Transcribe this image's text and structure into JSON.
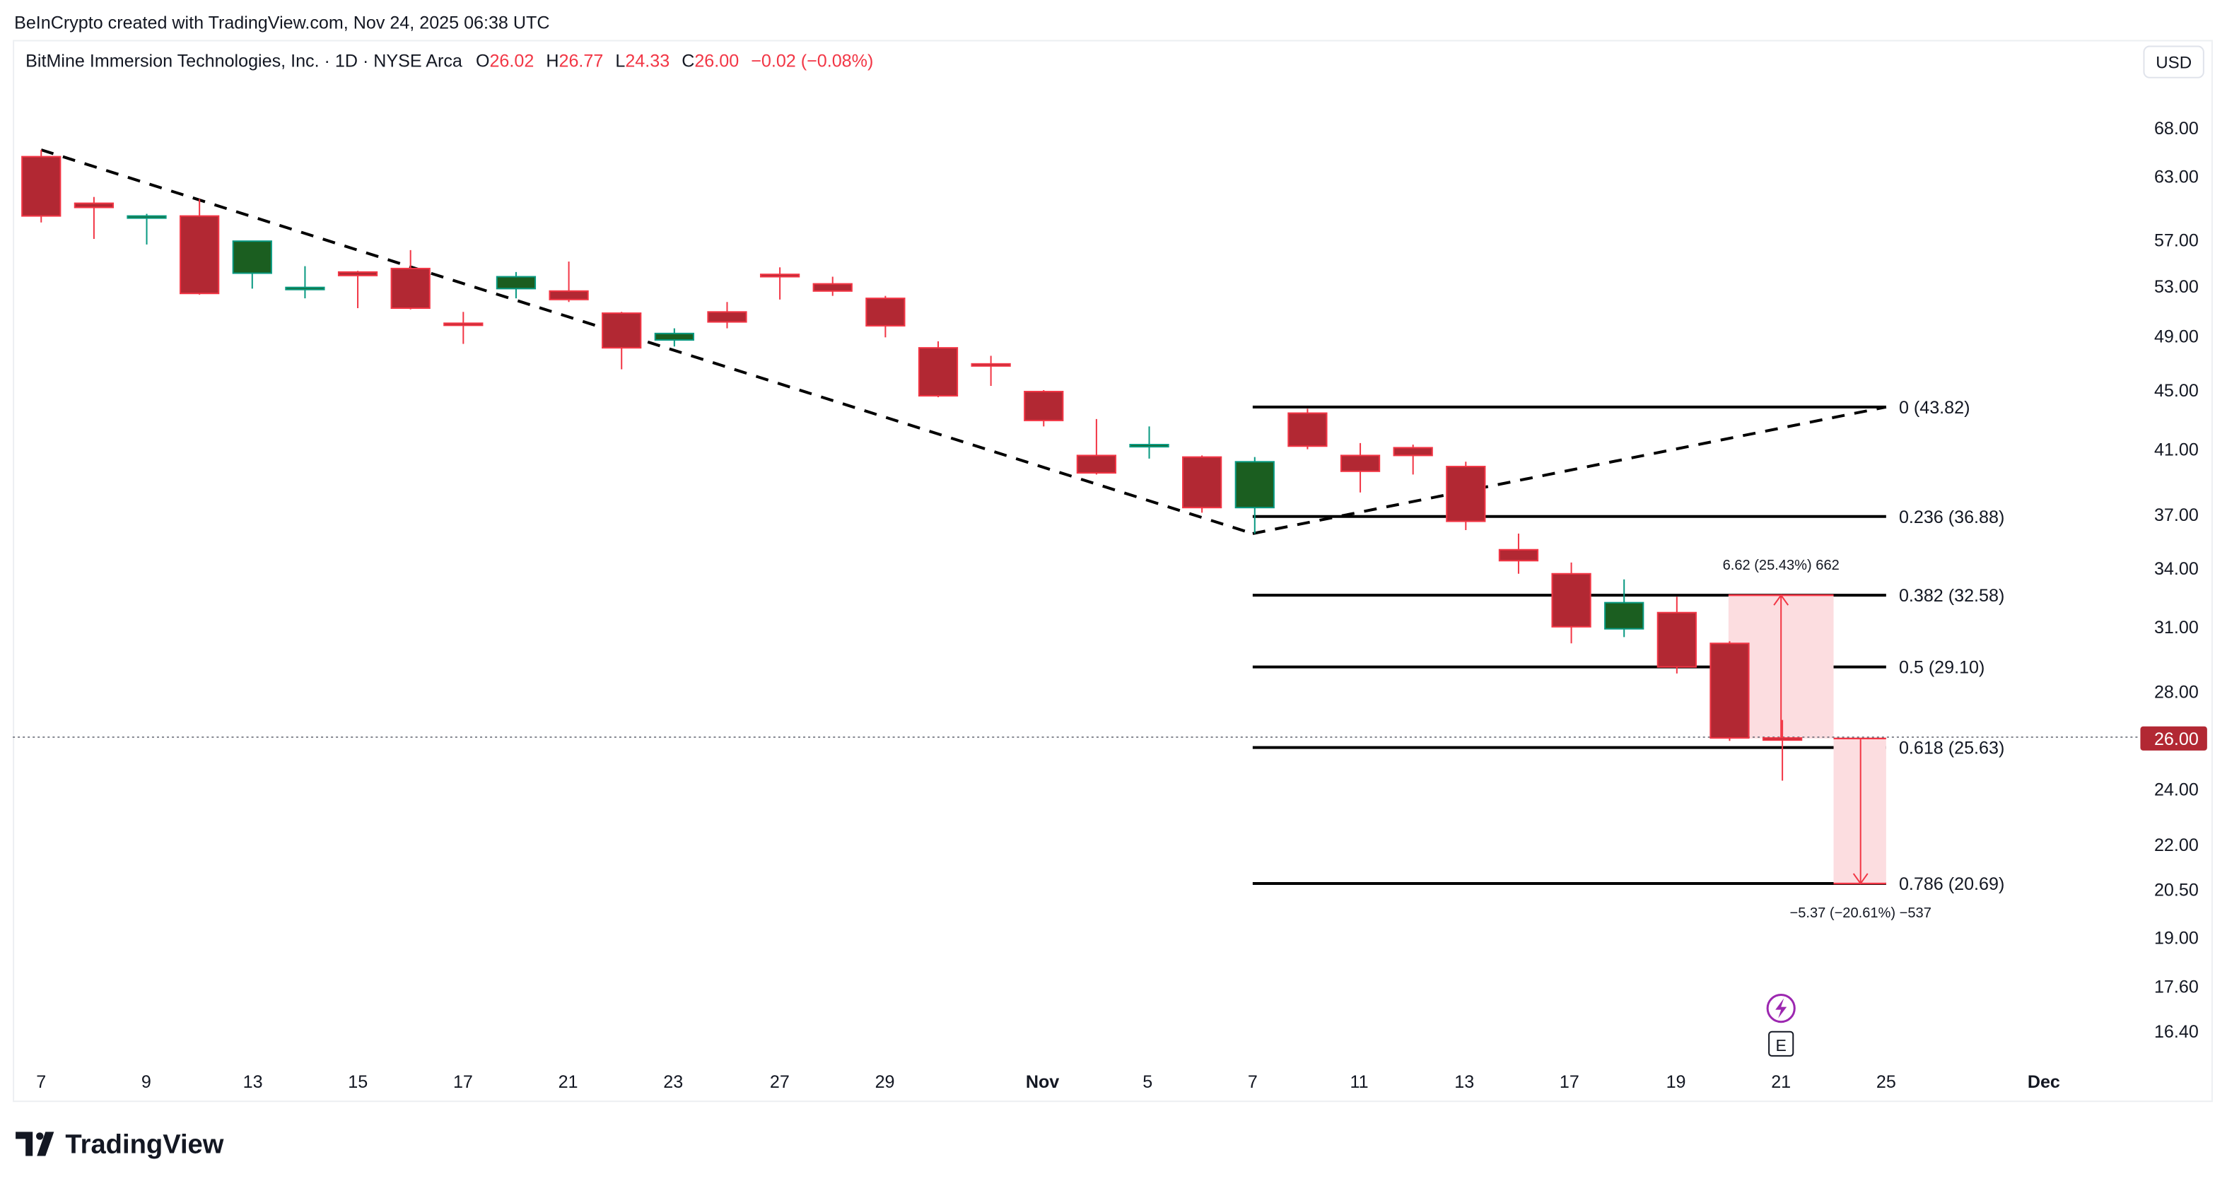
{
  "header": {
    "credit": "BeInCrypto created with TradingView.com, Nov 24, 2025 06:38 UTC"
  },
  "legend": {
    "symbol": "BitMine Immersion Technologies, Inc. · 1D · NYSE Arca",
    "o_label": "O",
    "o": "26.02",
    "h_label": "H",
    "h": "26.77",
    "l_label": "L",
    "l": "24.33",
    "c_label": "C",
    "c": "26.00",
    "change": "−0.02 (−0.08%)"
  },
  "currency_button": "USD",
  "footer": {
    "logo_text": "TradingView"
  },
  "colors": {
    "up_body": "#1b5e20",
    "up_border": "#089981",
    "down_body": "#b22833",
    "down_border": "#f23645",
    "accent_red": "#f23645",
    "measure_fill": "#fcdde0"
  },
  "chart_data": {
    "type": "candlestick",
    "y_scale": "log",
    "ylim": [
      15.9,
      74
    ],
    "y_ticks": [
      "68.00",
      "63.00",
      "57.00",
      "53.00",
      "49.00",
      "45.00",
      "41.00",
      "37.00",
      "34.00",
      "31.00",
      "28.00",
      "24.00",
      "22.00",
      "20.50",
      "19.00",
      "17.60",
      "16.40"
    ],
    "y_tick_values": [
      68,
      63,
      57,
      53,
      49,
      45,
      41,
      37,
      34,
      31,
      28,
      24,
      22,
      20.5,
      19,
      17.6,
      16.4
    ],
    "last_price": {
      "value": 26.0,
      "label": "26.00"
    },
    "x_ticks": [
      "7",
      "9",
      "13",
      "15",
      "17",
      "21",
      "23",
      "27",
      "29",
      "Nov",
      "5",
      "7",
      "11",
      "13",
      "17",
      "19",
      "21",
      "25",
      "Dec"
    ],
    "candles": [
      {
        "date": "2025-10-07",
        "o": 65.0,
        "h": 65.7,
        "l": 58.6,
        "c": 59.2
      },
      {
        "date": "2025-10-08",
        "o": 60.4,
        "h": 61.0,
        "l": 57.1,
        "c": 60.0
      },
      {
        "date": "2025-10-09",
        "o": 59.1,
        "h": 59.4,
        "l": 56.6,
        "c": 59.2
      },
      {
        "date": "2025-10-10",
        "o": 59.2,
        "h": 60.8,
        "l": 52.3,
        "c": 52.4
      },
      {
        "date": "2025-10-13",
        "o": 54.1,
        "h": 56.9,
        "l": 52.8,
        "c": 56.9
      },
      {
        "date": "2025-10-14",
        "o": 52.8,
        "h": 54.7,
        "l": 52.0,
        "c": 52.9
      },
      {
        "date": "2025-10-15",
        "o": 54.2,
        "h": 54.3,
        "l": 51.2,
        "c": 53.9
      },
      {
        "date": "2025-10-16",
        "o": 54.5,
        "h": 56.1,
        "l": 51.1,
        "c": 51.2
      },
      {
        "date": "2025-10-17",
        "o": 50.0,
        "h": 50.9,
        "l": 48.4,
        "c": 49.9
      },
      {
        "date": "2025-10-20",
        "o": 52.8,
        "h": 54.2,
        "l": 52.0,
        "c": 53.8
      },
      {
        "date": "2025-10-21",
        "o": 52.6,
        "h": 55.1,
        "l": 51.7,
        "c": 51.9
      },
      {
        "date": "2025-10-22",
        "o": 50.8,
        "h": 50.9,
        "l": 46.5,
        "c": 48.1
      },
      {
        "date": "2025-10-23",
        "o": 48.7,
        "h": 49.6,
        "l": 48.2,
        "c": 49.2
      },
      {
        "date": "2025-10-24",
        "o": 50.9,
        "h": 51.7,
        "l": 49.6,
        "c": 50.1
      },
      {
        "date": "2025-10-27",
        "o": 54.0,
        "h": 54.6,
        "l": 51.9,
        "c": 53.8
      },
      {
        "date": "2025-10-28",
        "o": 53.2,
        "h": 53.8,
        "l": 52.2,
        "c": 52.6
      },
      {
        "date": "2025-10-29",
        "o": 52.0,
        "h": 52.2,
        "l": 48.9,
        "c": 49.8
      },
      {
        "date": "2025-10-30",
        "o": 48.1,
        "h": 48.6,
        "l": 44.5,
        "c": 44.6
      },
      {
        "date": "2025-10-31",
        "o": 46.9,
        "h": 47.5,
        "l": 45.3,
        "c": 46.8
      },
      {
        "date": "2025-11-03",
        "o": 44.9,
        "h": 45.0,
        "l": 42.5,
        "c": 42.9
      },
      {
        "date": "2025-11-04",
        "o": 40.6,
        "h": 43.0,
        "l": 39.4,
        "c": 39.5
      },
      {
        "date": "2025-11-05",
        "o": 41.2,
        "h": 42.5,
        "l": 40.4,
        "c": 41.3
      },
      {
        "date": "2025-11-06",
        "o": 40.5,
        "h": 40.6,
        "l": 37.1,
        "c": 37.4
      },
      {
        "date": "2025-11-07",
        "o": 37.4,
        "h": 40.5,
        "l": 35.9,
        "c": 40.2
      },
      {
        "date": "2025-11-10",
        "o": 43.4,
        "h": 43.7,
        "l": 41.0,
        "c": 41.2
      },
      {
        "date": "2025-11-11",
        "o": 40.6,
        "h": 41.4,
        "l": 38.3,
        "c": 39.6
      },
      {
        "date": "2025-11-12",
        "o": 41.1,
        "h": 41.3,
        "l": 39.4,
        "c": 40.6
      },
      {
        "date": "2025-11-13",
        "o": 39.9,
        "h": 40.2,
        "l": 36.1,
        "c": 36.6
      },
      {
        "date": "2025-11-14",
        "o": 35.0,
        "h": 35.9,
        "l": 33.7,
        "c": 34.4
      },
      {
        "date": "2025-11-17",
        "o": 33.7,
        "h": 34.3,
        "l": 30.2,
        "c": 31.0
      },
      {
        "date": "2025-11-18",
        "o": 30.9,
        "h": 33.4,
        "l": 30.5,
        "c": 32.2
      },
      {
        "date": "2025-11-19",
        "o": 31.7,
        "h": 32.5,
        "l": 28.8,
        "c": 29.1
      },
      {
        "date": "2025-11-20",
        "o": 30.2,
        "h": 30.3,
        "l": 25.9,
        "c": 26.02
      },
      {
        "date": "2025-11-21",
        "o": 26.02,
        "h": 26.77,
        "l": 24.33,
        "c": 26.0
      }
    ],
    "fibonacci": [
      {
        "ratio": "0",
        "price": 43.82,
        "label": "0 (43.82)"
      },
      {
        "ratio": "0.236",
        "price": 36.88,
        "label": "0.236 (36.88)"
      },
      {
        "ratio": "0.382",
        "price": 32.58,
        "label": "0.382 (32.58)"
      },
      {
        "ratio": "0.5",
        "price": 29.1,
        "label": "0.5 (29.10)"
      },
      {
        "ratio": "0.618",
        "price": 25.63,
        "label": "0.618 (25.63)"
      },
      {
        "ratio": "0.786",
        "price": 20.69,
        "label": "0.786 (20.69)"
      }
    ],
    "trendlines": [
      {
        "from": {
          "date": "2025-10-07",
          "price": 65.7
        },
        "to": {
          "date": "2025-11-07",
          "price": 35.9
        },
        "style": "dashed"
      },
      {
        "from": {
          "date": "2025-11-07",
          "price": 35.9
        },
        "to": {
          "date": "2025-11-25",
          "price": 43.82
        },
        "style": "dashed"
      }
    ],
    "measures": [
      {
        "from_price": 26.0,
        "to_price": 32.58,
        "label": "6.62 (25.43%) 662"
      },
      {
        "from_price": 26.0,
        "to_price": 20.69,
        "label": "−5.37 (−20.61%) −537"
      }
    ],
    "events": [
      {
        "type": "dividend-or-split-lightning-icon"
      },
      {
        "type": "earnings",
        "label": "E"
      }
    ]
  }
}
